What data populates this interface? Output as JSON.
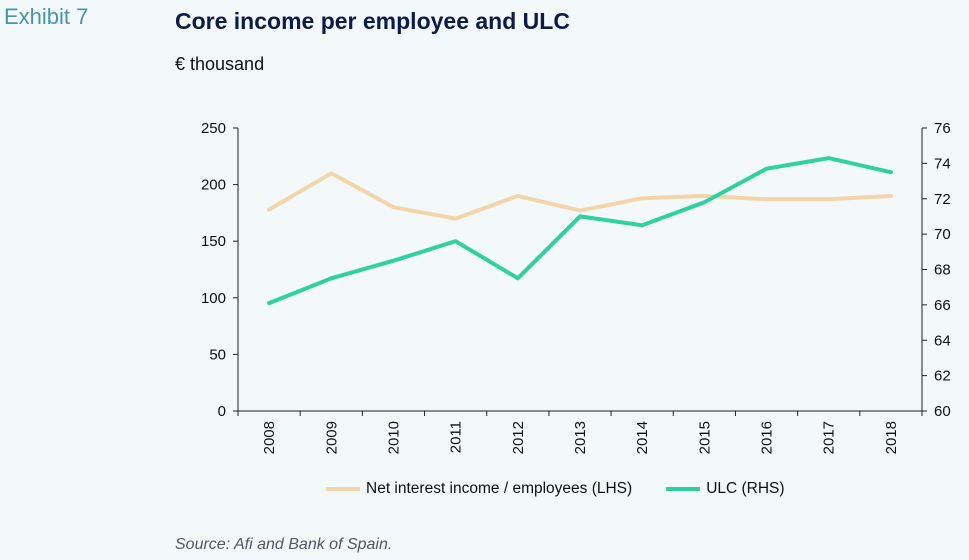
{
  "header": {
    "exhibit": "Exhibit 7",
    "title": "Core income per employee and ULC",
    "unit": "€ thousand"
  },
  "footer": {
    "source": "Source: Afi and Bank of Spain."
  },
  "chart_data": {
    "type": "line",
    "title": "Core income per employee and ULC",
    "subtitle": "€ thousand",
    "x": [
      "2008",
      "2009",
      "2010",
      "2011",
      "2012",
      "2013",
      "2014",
      "2015",
      "2016",
      "2017",
      "2018"
    ],
    "series": [
      {
        "name": "Net interest income / employees (LHS)",
        "axis": "left",
        "color": "#f2d6a8",
        "values": [
          178,
          210,
          180,
          170,
          190,
          177,
          188,
          190,
          187,
          187,
          190
        ]
      },
      {
        "name": "ULC (RHS)",
        "axis": "right",
        "color": "#2fd19e",
        "values": [
          66.1,
          67.5,
          68.5,
          69.6,
          67.5,
          71.0,
          70.5,
          71.8,
          73.7,
          74.3,
          73.5
        ]
      }
    ],
    "y_left": {
      "range": [
        0,
        250
      ],
      "ticks": [
        "0",
        "50",
        "100",
        "150",
        "200",
        "250"
      ]
    },
    "y_right": {
      "range": [
        60,
        76
      ],
      "ticks": [
        "60",
        "62",
        "64",
        "66",
        "68",
        "70",
        "72",
        "74",
        "76"
      ]
    },
    "grid": false,
    "legend": "bottom"
  }
}
